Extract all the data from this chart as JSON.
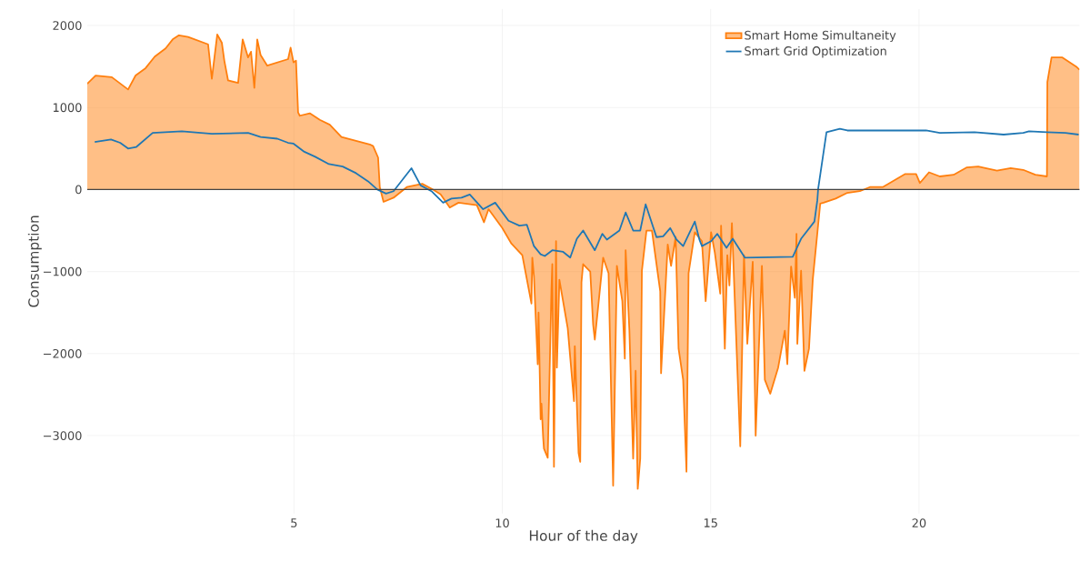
{
  "chart_data": {
    "type": "area",
    "xlabel": "Hour of the day",
    "ylabel": "Consumption",
    "xlim": [
      0.04,
      23.85
    ],
    "ylim": [
      -3950,
      2200
    ],
    "xticks": [
      5,
      10,
      15,
      20
    ],
    "yticks": [
      {
        "value": -3000,
        "label": "−3000"
      },
      {
        "value": -2000,
        "label": "−2000"
      },
      {
        "value": -1000,
        "label": "−1000"
      },
      0,
      1000,
      2000
    ],
    "grid": true,
    "legend": "top right",
    "marker": "none",
    "ref_lines": [
      {
        "axis": "y",
        "value": 0,
        "color": "#444444"
      }
    ],
    "series": [
      {
        "name": "Smart Home Simultaneity",
        "color": "#ff7f0e",
        "x": [
          0.04,
          0.24,
          0.63,
          1.02,
          1.2,
          1.44,
          1.66,
          1.92,
          2.09,
          2.24,
          2.46,
          2.94,
          3.03,
          3.16,
          3.27,
          3.33,
          3.42,
          3.66,
          3.77,
          3.9,
          3.97,
          4.05,
          4.12,
          4.2,
          4.36,
          4.86,
          4.92,
          4.99,
          5.05,
          5.1,
          5.14,
          5.38,
          5.62,
          5.86,
          6.14,
          6.82,
          6.9,
          7.02,
          7.06,
          7.15,
          7.39,
          7.71,
          8.08,
          8.34,
          8.52,
          8.74,
          8.95,
          9.39,
          9.56,
          9.67,
          10.0,
          10.22,
          10.48,
          10.7,
          10.72,
          10.76,
          10.85,
          10.87,
          10.92,
          10.94,
          10.98,
          11.0,
          11.09,
          11.18,
          11.2,
          11.24,
          11.29,
          11.31,
          11.37,
          11.57,
          11.72,
          11.74,
          11.83,
          11.87,
          11.9,
          11.94,
          12.11,
          12.18,
          12.22,
          12.42,
          12.55,
          12.66,
          12.75,
          12.88,
          12.94,
          12.96,
          13.05,
          13.14,
          13.2,
          13.25,
          13.31,
          13.35,
          13.46,
          13.59,
          13.79,
          13.81,
          13.97,
          14.05,
          14.16,
          14.23,
          14.34,
          14.42,
          14.47,
          14.62,
          14.79,
          14.88,
          15.01,
          15.1,
          15.23,
          15.25,
          15.34,
          15.4,
          15.45,
          15.51,
          15.71,
          15.8,
          15.88,
          16.01,
          16.08,
          16.23,
          16.3,
          16.43,
          16.62,
          16.78,
          16.84,
          16.93,
          17.02,
          17.06,
          17.08,
          17.17,
          17.25,
          17.36,
          17.45,
          17.63,
          17.71,
          18.0,
          18.28,
          18.58,
          18.82,
          19.13,
          19.67,
          19.93,
          20.02,
          20.24,
          20.5,
          20.83,
          21.15,
          21.42,
          21.87,
          22.2,
          22.5,
          22.79,
          23.07,
          23.08,
          23.18,
          23.44,
          23.77,
          23.85
        ],
        "values": [
          1290,
          1390,
          1370,
          1220,
          1390,
          1480,
          1620,
          1720,
          1830,
          1880,
          1860,
          1770,
          1350,
          1890,
          1790,
          1570,
          1330,
          1300,
          1830,
          1610,
          1680,
          1240,
          1830,
          1640,
          1510,
          1590,
          1730,
          1550,
          1570,
          940,
          900,
          930,
          850,
          790,
          640,
          550,
          530,
          390,
          30,
          -150,
          -100,
          30,
          70,
          0,
          -60,
          -220,
          -160,
          -190,
          -400,
          -240,
          -470,
          -660,
          -800,
          -1390,
          -830,
          -1060,
          -2130,
          -1500,
          -2800,
          -2610,
          -3020,
          -3160,
          -3270,
          -1210,
          -910,
          -3380,
          -630,
          -2170,
          -1100,
          -1690,
          -2580,
          -1910,
          -3210,
          -3320,
          -1130,
          -910,
          -1000,
          -1650,
          -1830,
          -830,
          -1020,
          -3610,
          -930,
          -1360,
          -2060,
          -740,
          -1720,
          -3280,
          -2210,
          -3650,
          -3280,
          -990,
          -500,
          -500,
          -1240,
          -2240,
          -670,
          -930,
          -580,
          -1940,
          -2320,
          -3440,
          -1020,
          -520,
          -630,
          -1360,
          -520,
          -770,
          -1270,
          -440,
          -1940,
          -800,
          -1170,
          -410,
          -3130,
          -800,
          -1880,
          -880,
          -3000,
          -930,
          -2320,
          -2490,
          -2170,
          -1720,
          -2130,
          -940,
          -1320,
          -540,
          -1880,
          -990,
          -2210,
          -1940,
          -1100,
          -170,
          -160,
          -110,
          -40,
          -20,
          30,
          30,
          190,
          190,
          80,
          210,
          160,
          180,
          270,
          280,
          230,
          260,
          240,
          180,
          160,
          1310,
          1610,
          1610,
          1500,
          1460
        ]
      },
      {
        "name": "Smart Grid Optimization",
        "type": "line",
        "color": "#1f77b4",
        "x": [
          0.22,
          0.61,
          0.83,
          1.02,
          1.22,
          1.61,
          2.31,
          3.03,
          3.9,
          4.2,
          4.6,
          4.86,
          4.99,
          5.25,
          5.51,
          5.84,
          6.17,
          6.49,
          6.78,
          7.0,
          7.21,
          7.39,
          7.82,
          8.04,
          8.3,
          8.58,
          8.78,
          9.02,
          9.22,
          9.54,
          9.83,
          10.15,
          10.41,
          10.59,
          10.76,
          10.92,
          11.02,
          11.2,
          11.46,
          11.63,
          11.79,
          11.94,
          12.22,
          12.4,
          12.51,
          12.81,
          12.96,
          13.14,
          13.31,
          13.44,
          13.7,
          13.86,
          14.03,
          14.18,
          14.34,
          14.62,
          14.73,
          14.79,
          15.01,
          15.16,
          15.38,
          15.53,
          15.82,
          16.97,
          17.17,
          17.49,
          17.56,
          17.58,
          17.78,
          18.1,
          18.28,
          20.17,
          20.5,
          21.33,
          22.03,
          22.5,
          22.64,
          23.07,
          23.51,
          23.83
        ],
        "values": [
          580,
          610,
          570,
          500,
          520,
          690,
          710,
          680,
          690,
          640,
          620,
          570,
          560,
          460,
          400,
          310,
          280,
          200,
          100,
          0,
          -50,
          -20,
          260,
          50,
          -20,
          -160,
          -110,
          -100,
          -60,
          -240,
          -160,
          -380,
          -440,
          -430,
          -690,
          -790,
          -810,
          -740,
          -760,
          -830,
          -600,
          -500,
          -740,
          -540,
          -610,
          -500,
          -280,
          -500,
          -500,
          -180,
          -580,
          -570,
          -470,
          -610,
          -690,
          -390,
          -610,
          -690,
          -630,
          -540,
          -710,
          -600,
          -830,
          -820,
          -600,
          -390,
          -130,
          10,
          700,
          740,
          720,
          720,
          690,
          700,
          670,
          690,
          710,
          700,
          690,
          670
        ]
      }
    ]
  }
}
